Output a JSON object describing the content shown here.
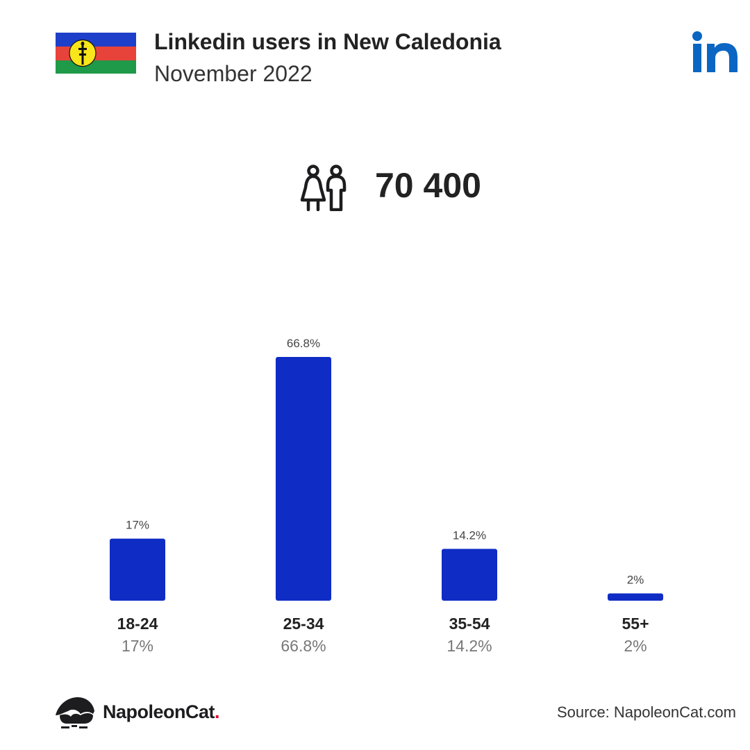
{
  "header": {
    "title": "Linkedin users in New Caledonia",
    "subtitle": "November 2022"
  },
  "icons": {
    "flag": "new-caledonia-flag-icon",
    "logo": "linkedin-logo-icon",
    "users": "users-icon",
    "brand": "napoleoncat-logo-icon"
  },
  "colors": {
    "bar": "#0f2cc4",
    "linkedin": "#0a66c2",
    "brand_dot": "#e4002b"
  },
  "summary": {
    "total_users": "70 400"
  },
  "chart_data": {
    "type": "bar",
    "title": "",
    "xlabel": "",
    "ylabel": "",
    "categories": [
      "18-24",
      "25-34",
      "35-54",
      "55+"
    ],
    "values": [
      17,
      66.8,
      14.2,
      2
    ],
    "value_labels": [
      "17%",
      "66.8%",
      "14.2%",
      "2%"
    ],
    "ylim": [
      0,
      66.8
    ],
    "grid": false,
    "legend": "none"
  },
  "footer": {
    "brand_name": "NapoleonCat",
    "brand_dot": ".",
    "source": "Source: NapoleonCat.com"
  }
}
